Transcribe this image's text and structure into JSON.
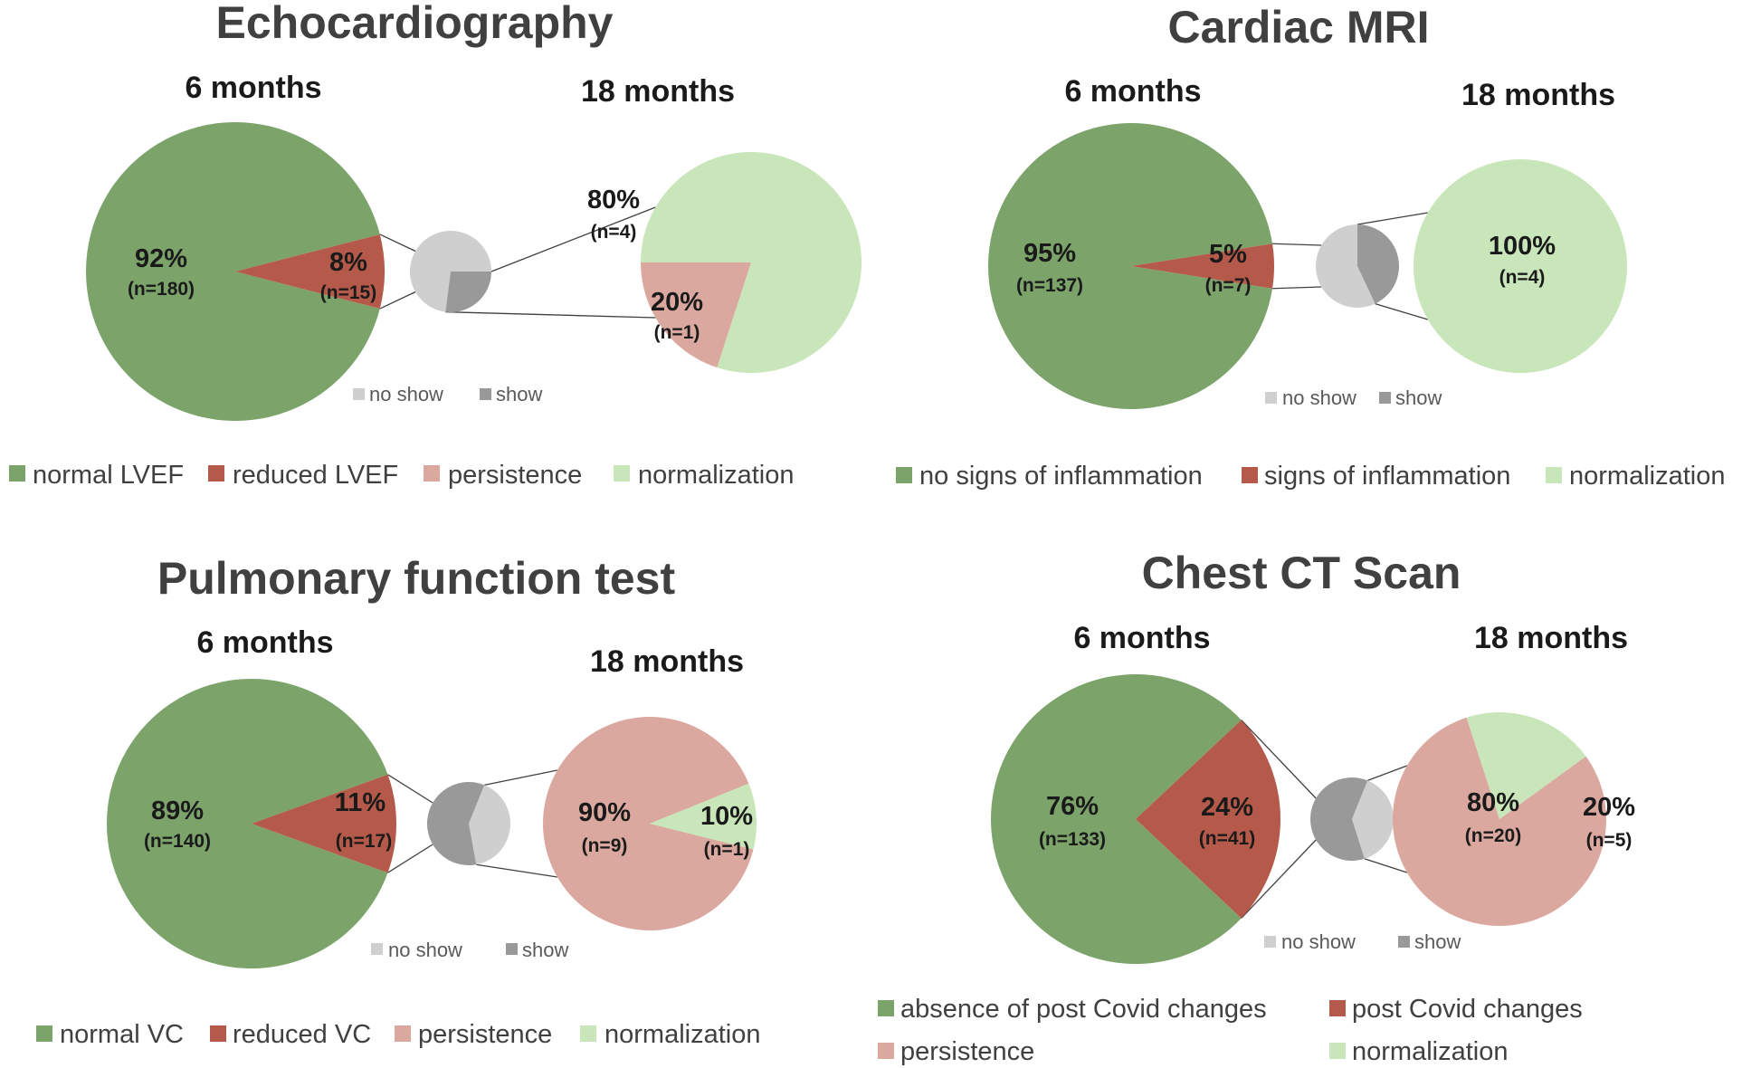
{
  "colors": {
    "green": "#7ba36a",
    "red": "#b55a4a",
    "pink": "#dba89f",
    "light_green": "#c8e6b9",
    "no_show": "#cfcfcf",
    "show": "#999999",
    "connector": "#404040"
  },
  "chart_data": [
    {
      "type": "pie",
      "title": "Echocardiography",
      "main": {
        "label": "6 months",
        "slices": [
          {
            "name": "normal LVEF",
            "value": 92,
            "pct_label": "92%",
            "n_label": "(n=180)",
            "color_key": "green"
          },
          {
            "name": "reduced LVEF",
            "value": 8,
            "pct_label": "8%",
            "n_label": "(n=15)",
            "color_key": "red"
          }
        ]
      },
      "attendance": {
        "slices": [
          {
            "name": "no show",
            "value": 73,
            "color_key": "no_show"
          },
          {
            "name": "show",
            "value": 27,
            "color_key": "show"
          }
        ]
      },
      "followup": {
        "label": "18 months",
        "slices": [
          {
            "name": "normalization",
            "value": 80,
            "pct_label": "80%",
            "n_label": "(n=4)",
            "color_key": "light_green"
          },
          {
            "name": "persistence",
            "value": 20,
            "pct_label": "20%",
            "n_label": "(n=1)",
            "color_key": "pink"
          }
        ]
      },
      "small_legend": [
        {
          "label": "no show",
          "color_key": "no_show"
        },
        {
          "label": "show",
          "color_key": "show"
        }
      ],
      "legend": [
        {
          "label": "normal LVEF",
          "color_key": "green"
        },
        {
          "label": "reduced LVEF",
          "color_key": "red"
        },
        {
          "label": "persistence",
          "color_key": "pink"
        },
        {
          "label": "normalization",
          "color_key": "light_green"
        }
      ]
    },
    {
      "type": "pie",
      "title": "Cardiac MRI",
      "main": {
        "label": "6 months",
        "slices": [
          {
            "name": "no signs of inflammation",
            "value": 95,
            "pct_label": "95%",
            "n_label": "(n=137)",
            "color_key": "green"
          },
          {
            "name": "signs of inflammation",
            "value": 5,
            "pct_label": "5%",
            "n_label": "(n=7)",
            "color_key": "red"
          }
        ]
      },
      "attendance": {
        "slices": [
          {
            "name": "no show",
            "value": 57,
            "color_key": "no_show"
          },
          {
            "name": "show",
            "value": 43,
            "color_key": "show"
          }
        ]
      },
      "followup": {
        "label": "18 months",
        "slices": [
          {
            "name": "normalization",
            "value": 100,
            "pct_label": "100%",
            "n_label": "(n=4)",
            "color_key": "light_green"
          }
        ]
      },
      "small_legend": [
        {
          "label": "no show",
          "color_key": "no_show"
        },
        {
          "label": "show",
          "color_key": "show"
        }
      ],
      "legend": [
        {
          "label": "no signs of inflammation",
          "color_key": "green"
        },
        {
          "label": "signs of inflammation",
          "color_key": "red"
        },
        {
          "label": "normalization",
          "color_key": "light_green"
        }
      ]
    },
    {
      "type": "pie",
      "title": "Pulmonary function test",
      "main": {
        "label": "6 months",
        "slices": [
          {
            "name": "normal VC",
            "value": 89,
            "pct_label": "89%",
            "n_label": "(n=140)",
            "color_key": "green"
          },
          {
            "name": "reduced VC",
            "value": 11,
            "pct_label": "11%",
            "n_label": "(n=17)",
            "color_key": "red"
          }
        ]
      },
      "attendance": {
        "slices": [
          {
            "name": "no show",
            "value": 41,
            "color_key": "no_show"
          },
          {
            "name": "show",
            "value": 59,
            "color_key": "show"
          }
        ]
      },
      "followup": {
        "label": "18 months",
        "slices": [
          {
            "name": "persistence",
            "value": 90,
            "pct_label": "90%",
            "n_label": "(n=9)",
            "color_key": "pink"
          },
          {
            "name": "normalization",
            "value": 10,
            "pct_label": "10%",
            "n_label": "(n=1)",
            "color_key": "light_green"
          }
        ]
      },
      "small_legend": [
        {
          "label": "no show",
          "color_key": "no_show"
        },
        {
          "label": "show",
          "color_key": "show"
        }
      ],
      "legend": [
        {
          "label": "normal VC",
          "color_key": "green"
        },
        {
          "label": "reduced VC",
          "color_key": "red"
        },
        {
          "label": "persistence",
          "color_key": "pink"
        },
        {
          "label": "normalization",
          "color_key": "light_green"
        }
      ]
    },
    {
      "type": "pie",
      "title": "Chest CT Scan",
      "main": {
        "label": "6 months",
        "slices": [
          {
            "name": "absence of post Covid changes",
            "value": 76,
            "pct_label": "76%",
            "n_label": "(n=133)",
            "color_key": "green"
          },
          {
            "name": "post Covid changes",
            "value": 24,
            "pct_label": "24%",
            "n_label": "(n=41)",
            "color_key": "red"
          }
        ]
      },
      "attendance": {
        "slices": [
          {
            "name": "no show",
            "value": 39,
            "color_key": "no_show"
          },
          {
            "name": "show",
            "value": 61,
            "color_key": "show"
          }
        ]
      },
      "followup": {
        "label": "18 months",
        "slices": [
          {
            "name": "persistence",
            "value": 80,
            "pct_label": "80%",
            "n_label": "(n=20)",
            "color_key": "pink"
          },
          {
            "name": "normalization",
            "value": 20,
            "pct_label": "20%",
            "n_label": "(n=5)",
            "color_key": "light_green"
          }
        ]
      },
      "small_legend": [
        {
          "label": "no show",
          "color_key": "no_show"
        },
        {
          "label": "show",
          "color_key": "show"
        }
      ],
      "legend": [
        {
          "label": "absence of post Covid changes",
          "color_key": "green"
        },
        {
          "label": "post Covid changes",
          "color_key": "red"
        },
        {
          "label": "persistence",
          "color_key": "pink"
        },
        {
          "label": "normalization",
          "color_key": "light_green"
        }
      ]
    }
  ]
}
